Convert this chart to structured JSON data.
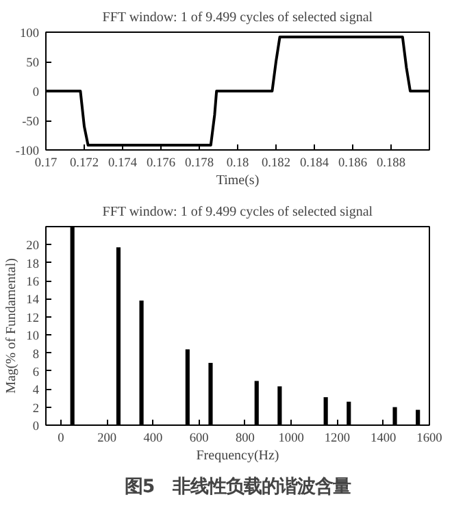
{
  "chart_data": [
    {
      "type": "line",
      "title": "FFT window: 1 of 9.499 cycles of selected signal",
      "xlabel": "Time(s)",
      "x": [
        0.17,
        0.1718,
        0.172,
        0.1722,
        0.1786,
        0.1788,
        0.1789,
        0.1818,
        0.182,
        0.1822,
        0.1886,
        0.1888,
        0.189,
        0.19
      ],
      "series": [
        {
          "color": "#000000",
          "values": [
            0,
            0,
            -60,
            -92,
            -92,
            -40,
            0,
            0,
            50,
            92,
            92,
            40,
            0,
            0
          ]
        }
      ],
      "xlim": [
        0.17,
        0.19
      ],
      "ylim": [
        -100,
        100
      ],
      "xticks": [
        0.17,
        0.172,
        0.174,
        0.176,
        0.178,
        0.18,
        0.182,
        0.184,
        0.186,
        0.188
      ],
      "yticks": [
        -100,
        -50,
        0,
        50,
        100
      ],
      "grid": false
    },
    {
      "type": "bar",
      "title": "FFT window: 1 of 9.499 cycles of selected signal",
      "xlabel": "Frequency(Hz)",
      "ylabel": "Mag(% of Fundamental)",
      "x": [
        50,
        250,
        350,
        550,
        650,
        850,
        950,
        1150,
        1250,
        1450,
        1550
      ],
      "series": [
        {
          "color": "#000000",
          "values": [
            22,
            19.7,
            13.8,
            8.4,
            6.9,
            4.9,
            4.3,
            3.1,
            2.6,
            2.0,
            1.7
          ]
        }
      ],
      "xlim": [
        -65,
        1600
      ],
      "ylim": [
        0,
        22
      ],
      "xticks": [
        0,
        200,
        400,
        600,
        800,
        1000,
        1200,
        1400,
        1600
      ],
      "yticks": [
        0,
        2,
        4,
        6,
        8,
        10,
        12,
        14,
        16,
        18,
        20
      ],
      "grid": false,
      "annotations": [
        "图5　非线性负载的谐波含量"
      ]
    }
  ]
}
